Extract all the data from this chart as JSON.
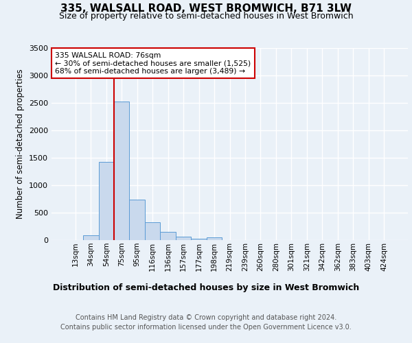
{
  "title_line1": "335, WALSALL ROAD, WEST BROMWICH, B71 3LW",
  "title_line2": "Size of property relative to semi-detached houses in West Bromwich",
  "xlabel": "Distribution of semi-detached houses by size in West Bromwich",
  "ylabel": "Number of semi-detached properties",
  "categories": [
    "13sqm",
    "34sqm",
    "54sqm",
    "75sqm",
    "95sqm",
    "116sqm",
    "136sqm",
    "157sqm",
    "177sqm",
    "198sqm",
    "219sqm",
    "239sqm",
    "260sqm",
    "280sqm",
    "301sqm",
    "321sqm",
    "342sqm",
    "362sqm",
    "383sqm",
    "403sqm",
    "424sqm"
  ],
  "values": [
    0,
    90,
    1430,
    2530,
    740,
    330,
    150,
    60,
    20,
    50,
    0,
    0,
    0,
    0,
    0,
    0,
    0,
    0,
    0,
    0,
    0
  ],
  "bar_color": "#c9d9ed",
  "bar_edge_color": "#5b9bd5",
  "red_line_index": 3,
  "annotation_text_line1": "335 WALSALL ROAD: 76sqm",
  "annotation_text_line2": "← 30% of semi-detached houses are smaller (1,525)",
  "annotation_text_line3": "68% of semi-detached houses are larger (3,489) →",
  "ylim": [
    0,
    3500
  ],
  "yticks": [
    0,
    500,
    1000,
    1500,
    2000,
    2500,
    3000,
    3500
  ],
  "background_color": "#eaf1f8",
  "plot_bg_color": "#eaf1f8",
  "footer_line1": "Contains HM Land Registry data © Crown copyright and database right 2024.",
  "footer_line2": "Contains public sector information licensed under the Open Government Licence v3.0.",
  "annotation_box_color": "#ffffff",
  "annotation_box_edge": "#cc0000",
  "red_line_color": "#cc0000",
  "grid_color": "#ffffff"
}
